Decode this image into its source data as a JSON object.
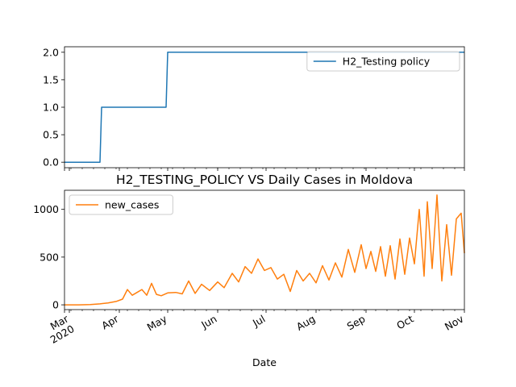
{
  "chart_data": [
    {
      "type": "line",
      "title": "",
      "xlabel": "",
      "ylabel": "",
      "ylim": [
        -0.1,
        2.1
      ],
      "yticks": [
        0.0,
        0.5,
        1.0,
        1.5,
        2.0
      ],
      "ytick_labels": [
        "0.0",
        "0.5",
        "1.0",
        "1.5",
        "2.0"
      ],
      "legend_position": "upper-right",
      "series": [
        {
          "name": "H2_Testing policy",
          "color": "#1f77b4",
          "x": [
            "2020-02-27",
            "2020-03-20",
            "2020-03-21",
            "2020-04-30",
            "2020-05-01",
            "2020-11-01"
          ],
          "values": [
            0,
            0,
            1,
            1,
            2,
            2
          ]
        }
      ]
    },
    {
      "type": "line",
      "title": "H2_TESTING_POLICY VS Daily Cases in Moldova",
      "xlabel": "Date",
      "ylabel": "",
      "ylim": [
        -50,
        1200
      ],
      "yticks": [
        0,
        500,
        1000
      ],
      "ytick_labels": [
        "0",
        "500",
        "1000"
      ],
      "xtick_labels": [
        "Mar\n2020",
        "Apr",
        "May",
        "Jun",
        "Jul",
        "Aug",
        "Sep",
        "Oct",
        "Nov"
      ],
      "legend_position": "upper-left",
      "series": [
        {
          "name": "new_cases",
          "color": "#ff7f0e",
          "x": [
            "2020-02-27",
            "2020-03-07",
            "2020-03-14",
            "2020-03-20",
            "2020-03-25",
            "2020-03-30",
            "2020-04-03",
            "2020-04-06",
            "2020-04-09",
            "2020-04-12",
            "2020-04-15",
            "2020-04-18",
            "2020-04-21",
            "2020-04-24",
            "2020-04-27",
            "2020-05-01",
            "2020-05-06",
            "2020-05-10",
            "2020-05-14",
            "2020-05-18",
            "2020-05-22",
            "2020-05-27",
            "2020-06-01",
            "2020-06-05",
            "2020-06-10",
            "2020-06-14",
            "2020-06-18",
            "2020-06-22",
            "2020-06-26",
            "2020-06-30",
            "2020-07-04",
            "2020-07-08",
            "2020-07-12",
            "2020-07-16",
            "2020-07-20",
            "2020-07-24",
            "2020-07-28",
            "2020-08-01",
            "2020-08-05",
            "2020-08-09",
            "2020-08-13",
            "2020-08-17",
            "2020-08-21",
            "2020-08-25",
            "2020-08-29",
            "2020-09-01",
            "2020-09-04",
            "2020-09-07",
            "2020-09-10",
            "2020-09-13",
            "2020-09-16",
            "2020-09-19",
            "2020-09-22",
            "2020-09-25",
            "2020-09-28",
            "2020-10-01",
            "2020-10-04",
            "2020-10-07",
            "2020-10-09",
            "2020-10-12",
            "2020-10-15",
            "2020-10-18",
            "2020-10-21",
            "2020-10-24",
            "2020-10-27",
            "2020-10-30",
            "2020-11-01"
          ],
          "values": [
            0,
            0,
            3,
            10,
            20,
            35,
            60,
            160,
            100,
            130,
            160,
            100,
            225,
            110,
            95,
            125,
            130,
            115,
            250,
            120,
            215,
            150,
            240,
            180,
            330,
            240,
            400,
            330,
            480,
            360,
            390,
            270,
            320,
            140,
            360,
            250,
            330,
            230,
            410,
            260,
            440,
            290,
            580,
            340,
            630,
            380,
            560,
            350,
            610,
            300,
            620,
            270,
            690,
            320,
            700,
            430,
            1000,
            300,
            1080,
            380,
            1150,
            250,
            840,
            310,
            900,
            960,
            540
          ]
        }
      ]
    }
  ]
}
